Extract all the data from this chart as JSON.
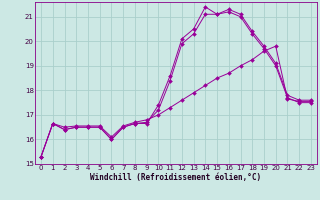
{
  "xlabel": "Windchill (Refroidissement éolien,°C)",
  "bg_color": "#cce8e4",
  "grid_color": "#aacfcc",
  "line_color": "#990099",
  "xlim": [
    -0.5,
    23.5
  ],
  "ylim": [
    15,
    21.6
  ],
  "yticks": [
    15,
    16,
    17,
    18,
    19,
    20,
    21
  ],
  "xticks": [
    0,
    1,
    2,
    3,
    4,
    5,
    6,
    7,
    8,
    9,
    10,
    11,
    12,
    13,
    14,
    15,
    16,
    17,
    18,
    19,
    20,
    21,
    22,
    23
  ],
  "line1_x": [
    0,
    1,
    2,
    3,
    4,
    5,
    6,
    7,
    8,
    9,
    10,
    11,
    12,
    13,
    14,
    15,
    16,
    17,
    18,
    19,
    20,
    21,
    22,
    23
  ],
  "line1_y": [
    15.3,
    16.65,
    16.4,
    16.5,
    16.5,
    16.5,
    16.0,
    16.5,
    16.65,
    16.65,
    17.4,
    18.6,
    20.1,
    20.5,
    21.4,
    21.1,
    21.3,
    21.1,
    20.4,
    19.8,
    19.1,
    17.8,
    17.6,
    17.6
  ],
  "line2_x": [
    0,
    1,
    2,
    3,
    4,
    5,
    6,
    7,
    8,
    9,
    10,
    11,
    12,
    13,
    14,
    15,
    16,
    17,
    18,
    19,
    20,
    21,
    22,
    23
  ],
  "line2_y": [
    15.3,
    16.65,
    16.4,
    16.5,
    16.5,
    16.5,
    16.0,
    16.5,
    16.65,
    16.7,
    17.2,
    18.4,
    19.9,
    20.3,
    21.1,
    21.1,
    21.2,
    21.0,
    20.3,
    19.7,
    19.0,
    17.7,
    17.5,
    17.5
  ],
  "line3_x": [
    0,
    1,
    2,
    3,
    4,
    5,
    6,
    7,
    8,
    9,
    10,
    11,
    12,
    13,
    14,
    15,
    16,
    17,
    18,
    19,
    20,
    21,
    22,
    23
  ],
  "line3_y": [
    15.3,
    16.65,
    16.5,
    16.55,
    16.55,
    16.55,
    16.1,
    16.55,
    16.7,
    16.8,
    17.0,
    17.3,
    17.6,
    17.9,
    18.2,
    18.5,
    18.7,
    19.0,
    19.25,
    19.6,
    19.8,
    17.65,
    17.55,
    17.55
  ]
}
